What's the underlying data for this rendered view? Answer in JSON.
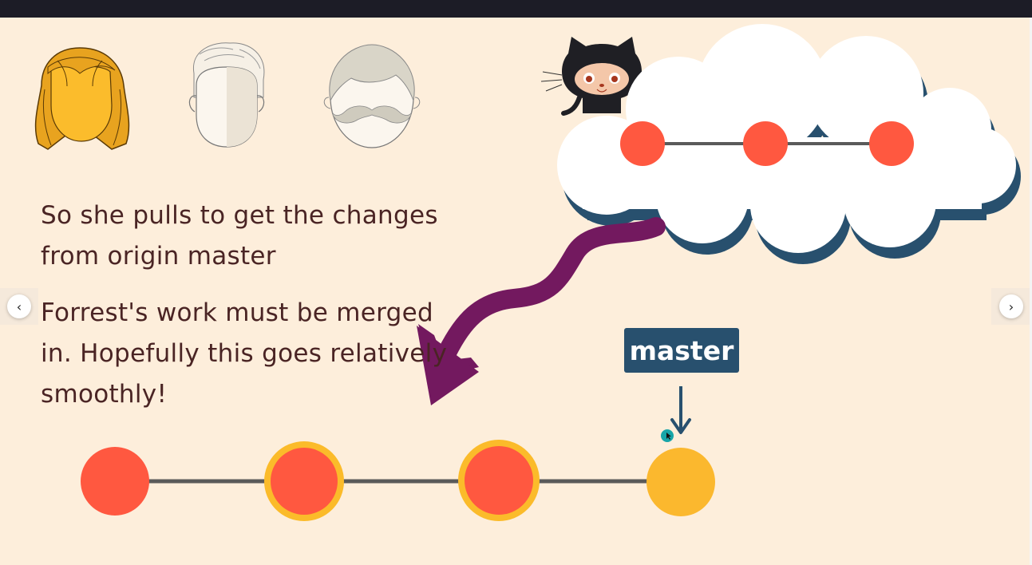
{
  "slide": {
    "text_primary": "So she pulls to get the changes from origin master",
    "text_secondary": "Forrest's work must be merged in.  Hopefully this goes relatively smoothly!",
    "branch_label": "master"
  },
  "nav": {
    "prev_glyph": "‹",
    "next_glyph": "›"
  },
  "colors": {
    "background": "#fdeedb",
    "text": "#4a2424",
    "commit": "#ff5840",
    "commit_ring": "#fbbb2a",
    "new_commit": "#fbb82e",
    "line": "#5a5a5a",
    "label_bg": "#28506e",
    "arrow": "#73195f",
    "cloud_shadow": "#28506e",
    "cursor": "#17a5a8"
  },
  "icons": [
    "woman-face-icon",
    "man-face-icon",
    "mustache-face-icon",
    "octocat-icon",
    "cloud-icon",
    "pull-arrow-icon",
    "down-arrow-icon",
    "cursor-icon"
  ]
}
